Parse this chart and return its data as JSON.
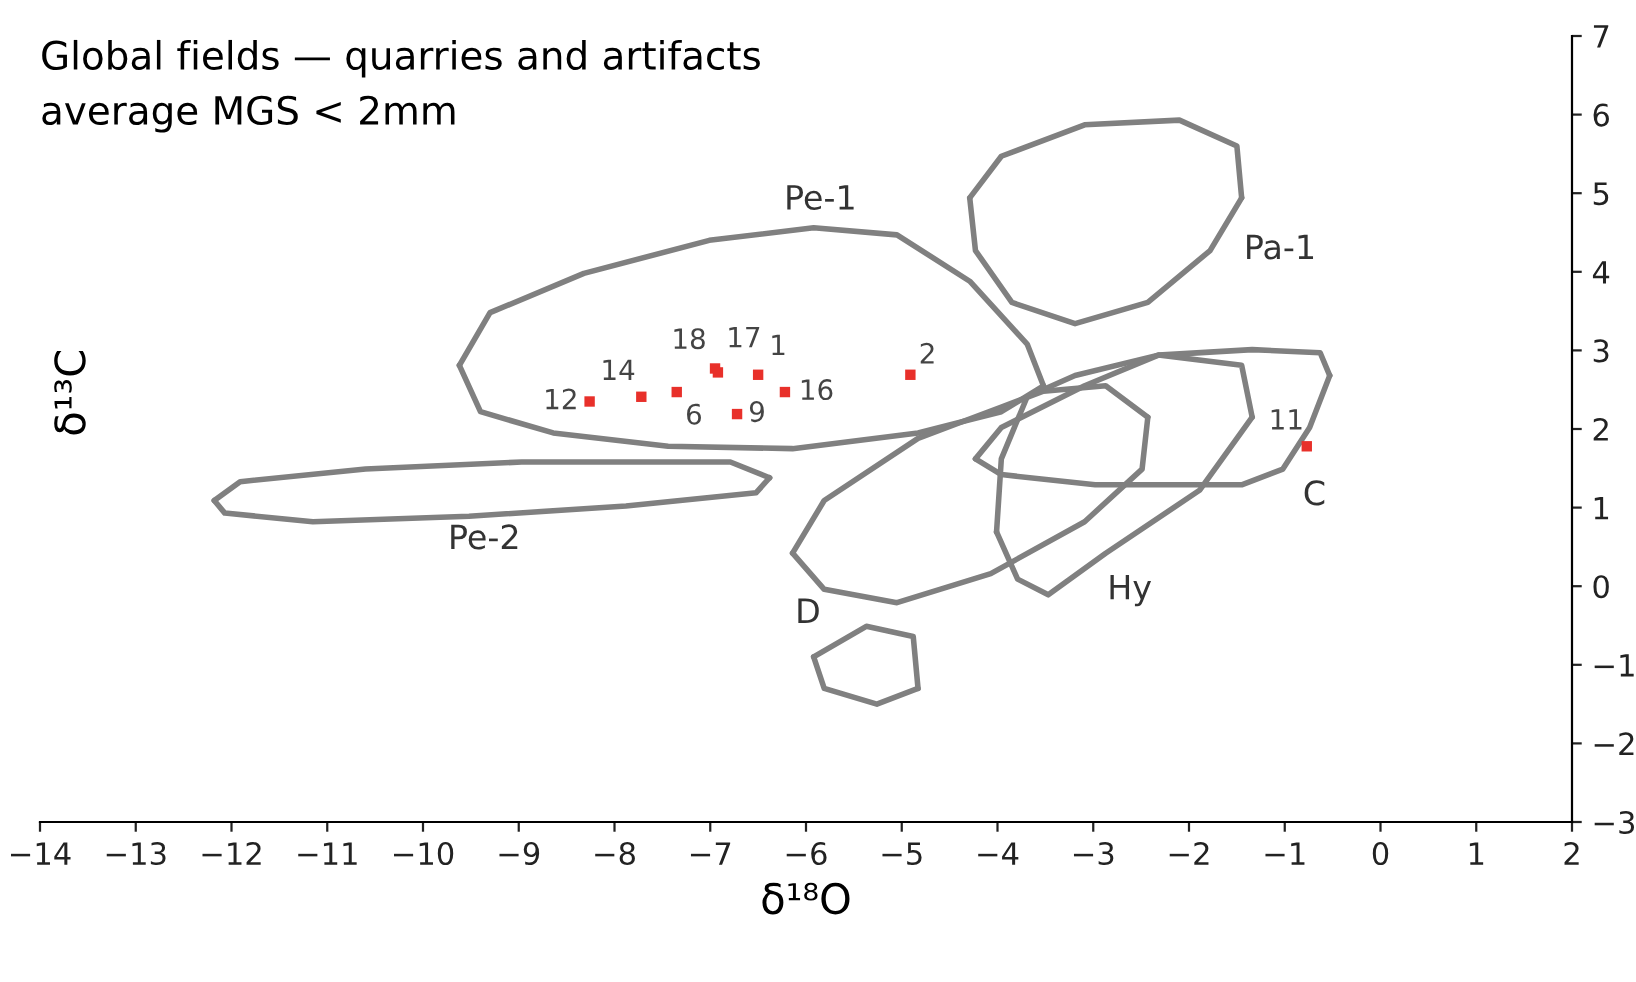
{
  "chart_data": {
    "type": "scatter",
    "title": "Global fields — quarries and artifacts",
    "subtitle": "average MGS < 2mm",
    "xlabel": "δ¹⁸O",
    "ylabel": "δ¹³C",
    "xlim": [
      -14,
      2
    ],
    "ylim": [
      -3,
      7
    ],
    "xticks": [
      -14,
      -13,
      -12,
      -11,
      -10,
      -9,
      -8,
      -7,
      -6,
      -5,
      -4,
      -3,
      -2,
      -1,
      0,
      1,
      2
    ],
    "yticks": [
      -3,
      -2,
      -1,
      0,
      1,
      2,
      3,
      4,
      5,
      6,
      7
    ],
    "grid": false,
    "legend": false,
    "series": [
      {
        "marker": "square",
        "color": "#e8302a",
        "x": [
          -8.26,
          -7.72,
          -7.35,
          -6.95,
          -6.92,
          -6.5,
          -6.22,
          -6.72,
          -4.91,
          -0.77
        ],
        "values": [
          2.35,
          2.41,
          2.47,
          2.77,
          2.72,
          2.69,
          2.47,
          2.19,
          2.69,
          1.78
        ]
      },
      {
        "type": "line",
        "color": "#808080",
        "x": [
          -9.62,
          -9.3,
          -8.32,
          -7.01,
          -5.92,
          -5.05,
          -4.29,
          -3.69,
          -3.52
        ],
        "values": [
          2.81,
          3.48,
          3.98,
          4.4,
          4.56,
          4.47,
          3.88,
          3.08,
          2.55
        ]
      },
      {
        "type": "line",
        "color": "#808080",
        "x": [
          -9.62,
          -9.4,
          -8.64,
          -7.44,
          -6.14,
          -4.83,
          -3.96,
          -3.52
        ],
        "values": [
          2.81,
          2.22,
          1.95,
          1.78,
          1.75,
          1.95,
          2.22,
          2.55
        ]
      },
      {
        "type": "line",
        "color": "#808080",
        "x": [
          -4.29,
          -3.96,
          -3.09,
          -2.1,
          -1.5,
          -1.45
        ],
        "values": [
          4.94,
          5.47,
          5.87,
          5.93,
          5.6,
          4.94
        ]
      },
      {
        "type": "line",
        "color": "#808080",
        "x": [
          -4.29,
          -4.23,
          -3.85,
          -3.19,
          -2.43,
          -1.78,
          -1.45
        ],
        "values": [
          4.94,
          4.27,
          3.61,
          3.34,
          3.61,
          4.27,
          4.94
        ]
      },
      {
        "type": "line",
        "color": "#808080",
        "x": [
          -12.18,
          -11.91,
          -10.6,
          -8.97,
          -6.79,
          -6.38
        ],
        "values": [
          1.09,
          1.33,
          1.49,
          1.58,
          1.58,
          1.38
        ]
      },
      {
        "type": "line",
        "color": "#808080",
        "x": [
          -12.18,
          -12.07,
          -11.15,
          -9.52,
          -7.88,
          -6.52,
          -6.38
        ],
        "values": [
          1.09,
          0.93,
          0.82,
          0.89,
          1.02,
          1.19,
          1.38
        ]
      },
      {
        "type": "line",
        "color": "#808080",
        "x": [
          -4.23,
          -3.96,
          -3.09,
          -2.32,
          -1.34,
          -0.63,
          -0.53
        ],
        "values": [
          1.62,
          2.02,
          2.55,
          2.94,
          3.01,
          2.97,
          2.68
        ]
      },
      {
        "type": "line",
        "color": "#808080",
        "x": [
          -4.23,
          -3.96,
          -2.98,
          -1.45,
          -1.02,
          -0.74,
          -0.53
        ],
        "values": [
          1.62,
          1.42,
          1.29,
          1.29,
          1.49,
          2.02,
          2.68
        ]
      },
      {
        "type": "line",
        "color": "#808080",
        "x": [
          -4.01,
          -3.96,
          -3.69,
          -3.19,
          -2.32,
          -1.45,
          -1.34
        ],
        "values": [
          0.69,
          1.62,
          2.41,
          2.68,
          2.94,
          2.81,
          2.15
        ]
      },
      {
        "type": "line",
        "color": "#808080",
        "x": [
          -4.01,
          -3.79,
          -3.47,
          -2.87,
          -1.89,
          -1.34
        ],
        "values": [
          0.69,
          0.09,
          -0.11,
          0.42,
          1.22,
          2.15
        ]
      },
      {
        "type": "line",
        "color": "#808080",
        "x": [
          -6.14,
          -5.81,
          -4.83,
          -3.96,
          -3.52,
          -2.87,
          -2.43
        ],
        "values": [
          0.42,
          1.09,
          1.88,
          2.28,
          2.48,
          2.55,
          2.15
        ]
      },
      {
        "type": "line",
        "color": "#808080",
        "x": [
          -6.14,
          -5.81,
          -5.05,
          -4.07,
          -3.09,
          -2.49,
          -2.43
        ],
        "values": [
          0.42,
          -0.04,
          -0.21,
          0.16,
          0.82,
          1.49,
          2.15
        ]
      },
      {
        "type": "line",
        "color": "#808080",
        "x": [
          -5.92,
          -5.37,
          -4.88,
          -4.83
        ],
        "values": [
          -0.9,
          -0.51,
          -0.64,
          -1.3
        ]
      },
      {
        "type": "line",
        "color": "#808080",
        "x": [
          -5.92,
          -5.81,
          -5.26,
          -4.83
        ],
        "values": [
          -0.9,
          -1.3,
          -1.5,
          -1.3
        ]
      }
    ],
    "annotations": [
      {
        "text": "12",
        "x": -8.26,
        "y": 2.35
      },
      {
        "text": "14",
        "x": -7.72,
        "y": 2.41
      },
      {
        "text": "6",
        "x": -7.35,
        "y": 2.47
      },
      {
        "text": "18",
        "x": -6.95,
        "y": 2.77
      },
      {
        "text": "17",
        "x": -6.92,
        "y": 2.72
      },
      {
        "text": "1",
        "x": -6.5,
        "y": 2.69
      },
      {
        "text": "16",
        "x": -6.22,
        "y": 2.47
      },
      {
        "text": "9",
        "x": -6.72,
        "y": 2.19
      },
      {
        "text": "2",
        "x": -4.91,
        "y": 2.69
      },
      {
        "text": "11",
        "x": -0.77,
        "y": 1.78
      },
      "Pe-1",
      "Pa-1",
      "Pe-2",
      "C",
      "Hy",
      "D"
    ]
  }
}
